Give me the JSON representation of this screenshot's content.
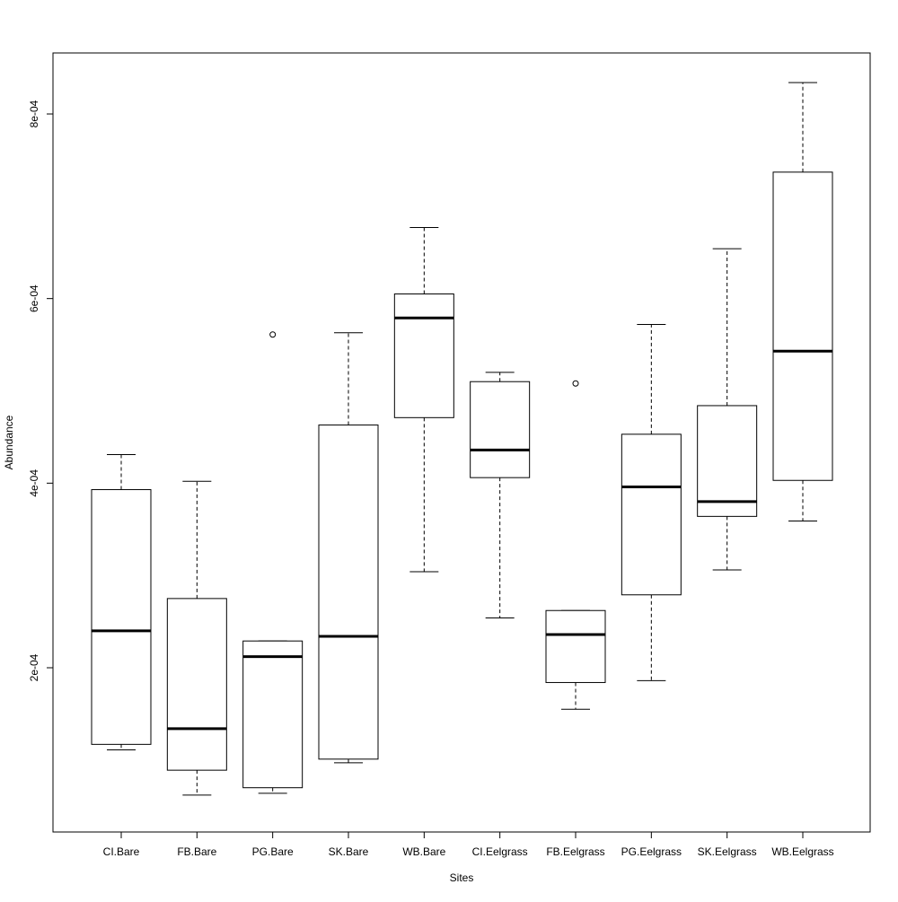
{
  "chart_data": {
    "type": "boxplot",
    "title": "",
    "xlabel": "Sites",
    "ylabel": "Abundance",
    "ylim": [
      4e-05,
      0.00087
    ],
    "yticks": [
      0.0002,
      0.0004,
      0.0006,
      0.0008
    ],
    "ytick_labels": [
      "2e-04",
      "4e-04",
      "6e-04",
      "8e-04"
    ],
    "categories": [
      "CI.Bare",
      "FB.Bare",
      "PG.Bare",
      "SK.Bare",
      "WB.Bare",
      "CI.Eelgrass",
      "FB.Eelgrass",
      "PG.Eelgrass",
      "SK.Eelgrass",
      "WB.Eelgrass"
    ],
    "boxes": [
      {
        "min": 0.000111,
        "q1": 0.000117,
        "median": 0.00024,
        "q3": 0.000393,
        "max": 0.000431,
        "outliers": []
      },
      {
        "min": 6.2e-05,
        "q1": 8.9e-05,
        "median": 0.000134,
        "q3": 0.000275,
        "max": 0.000402,
        "outliers": []
      },
      {
        "min": 6.4e-05,
        "q1": 7e-05,
        "median": 0.000212,
        "q3": 0.000229,
        "max": 0.000229,
        "outliers": [
          0.000561
        ]
      },
      {
        "min": 9.7e-05,
        "q1": 0.000101,
        "median": 0.000234,
        "q3": 0.000463,
        "max": 0.000563,
        "outliers": []
      },
      {
        "min": 0.000304,
        "q1": 0.000471,
        "median": 0.000579,
        "q3": 0.000605,
        "max": 0.000677,
        "outliers": []
      },
      {
        "min": 0.000254,
        "q1": 0.000406,
        "median": 0.000436,
        "q3": 0.00051,
        "max": 0.00052,
        "outliers": []
      },
      {
        "min": 0.000155,
        "q1": 0.000184,
        "median": 0.000236,
        "q3": 0.000262,
        "max": 0.000262,
        "outliers": [
          0.000508
        ]
      },
      {
        "min": 0.000186,
        "q1": 0.000279,
        "median": 0.000396,
        "q3": 0.000453,
        "max": 0.000572,
        "outliers": []
      },
      {
        "min": 0.000306,
        "q1": 0.000364,
        "median": 0.00038,
        "q3": 0.000484,
        "max": 0.000654,
        "outliers": []
      },
      {
        "min": 0.000359,
        "q1": 0.000403,
        "median": 0.000543,
        "q3": 0.000737,
        "max": 0.000834,
        "outliers": []
      }
    ],
    "grid": false,
    "legend": "none"
  }
}
